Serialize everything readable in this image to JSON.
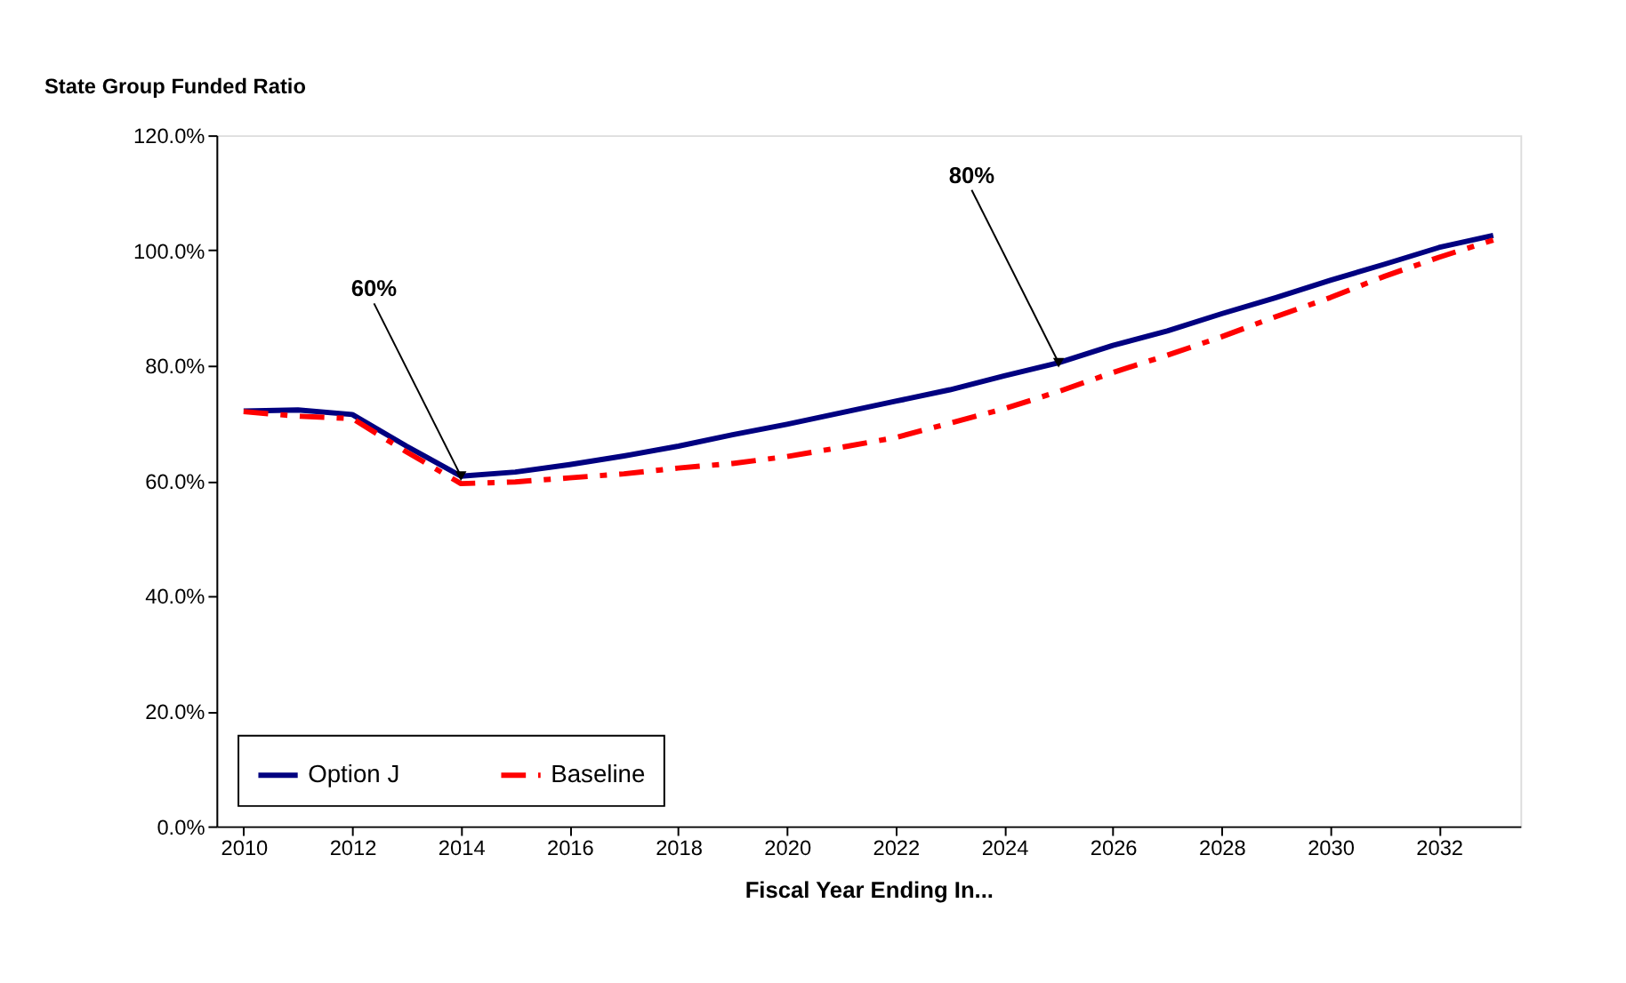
{
  "chart_data": {
    "type": "line",
    "title": "State Group Funded Ratio",
    "xlabel": "Fiscal Year Ending In...",
    "x": [
      2010,
      2011,
      2012,
      2013,
      2014,
      2015,
      2016,
      2017,
      2018,
      2019,
      2020,
      2021,
      2022,
      2023,
      2024,
      2025,
      2026,
      2027,
      2028,
      2029,
      2030,
      2031,
      2032,
      2033
    ],
    "series": [
      {
        "name": "Option J",
        "color": "#000080",
        "line_style": "solid",
        "values": [
          72.1,
          72.3,
          71.5,
          66,
          60.8,
          61.5,
          62.8,
          64.3,
          66,
          68,
          69.8,
          71.8,
          73.8,
          75.8,
          78.2,
          80.5,
          83.5,
          86,
          89,
          91.8,
          94.8,
          97.6,
          100.5,
          102.6
        ]
      },
      {
        "name": "Baseline",
        "color": "#ff0000",
        "line_style": "dashed",
        "values": [
          72,
          71.2,
          70.8,
          65,
          59.5,
          59.8,
          60.5,
          61.2,
          62.2,
          63,
          64.2,
          65.8,
          67.5,
          70,
          72.5,
          75.5,
          78.8,
          81.8,
          85,
          88.5,
          91.8,
          95.5,
          98.8,
          101.8
        ]
      }
    ],
    "xlim": [
      2009.5,
      2033.5
    ],
    "xticks": [
      2010,
      2012,
      2014,
      2016,
      2018,
      2020,
      2022,
      2024,
      2026,
      2028,
      2030,
      2032
    ],
    "ylim": [
      0,
      120
    ],
    "yticks": [
      {
        "value": 0,
        "label": "0.0%"
      },
      {
        "value": 20,
        "label": "20.0%"
      },
      {
        "value": 40,
        "label": "40.0%"
      },
      {
        "value": 60,
        "label": "60.0%"
      },
      {
        "value": 80,
        "label": "80.0%"
      },
      {
        "value": 100,
        "label": "100.0%"
      },
      {
        "value": 120,
        "label": "120.0%"
      }
    ],
    "annotations": [
      {
        "text": "60%",
        "x": 2014,
        "y": 60.8
      },
      {
        "text": "80%",
        "x": 2025,
        "y": 80.5
      }
    ],
    "grid": false,
    "legend": "bottom left",
    "marker": "none"
  }
}
